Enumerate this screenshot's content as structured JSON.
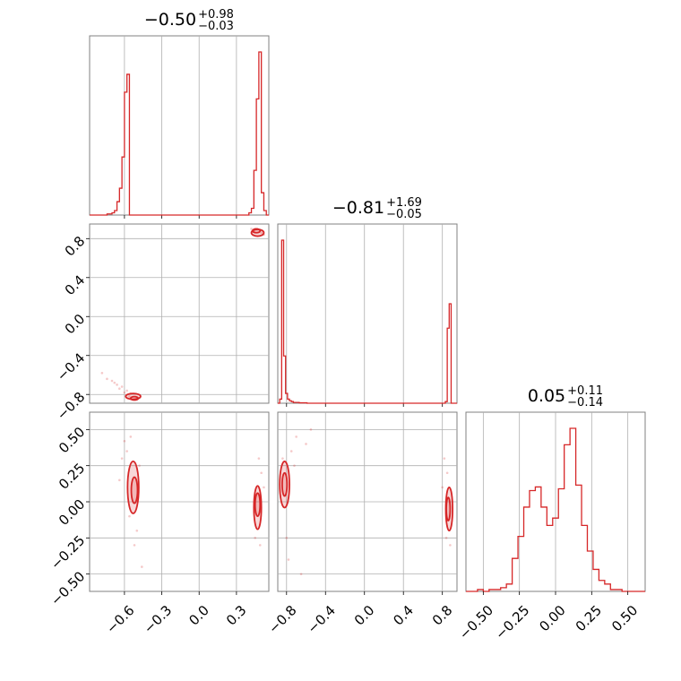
{
  "chart_data": {
    "type": "corner",
    "colors": {
      "line": "#d62728",
      "grid": "#b0b0b0",
      "frame": "#808080"
    },
    "parameters": [
      {
        "title_value": "−0.50",
        "title_upper": "+0.98",
        "title_lower": "−0.03",
        "range": [
          -0.88,
          0.56
        ],
        "ticks": [
          -0.6,
          -0.3,
          0.0,
          0.3
        ],
        "tick_labels": [
          "−0.6",
          "−0.3",
          "0.0",
          "0.3"
        ],
        "hist_edges": [
          -0.88,
          -0.86,
          -0.84,
          -0.82,
          -0.8,
          -0.78,
          -0.76,
          -0.74,
          -0.72,
          -0.7,
          -0.68,
          -0.66,
          -0.64,
          -0.62,
          -0.6,
          -0.58,
          -0.56,
          -0.54,
          -0.52,
          -0.5,
          -0.48,
          -0.46,
          -0.44,
          -0.42,
          -0.4,
          -0.38,
          -0.36,
          -0.34,
          -0.32,
          -0.3,
          -0.28,
          -0.26,
          -0.24,
          -0.22,
          -0.2,
          -0.18,
          -0.16,
          -0.14,
          -0.12,
          -0.1,
          -0.08,
          -0.06,
          -0.04,
          -0.02,
          0.0,
          0.02,
          0.04,
          0.06,
          0.08,
          0.1,
          0.12,
          0.14,
          0.16,
          0.18,
          0.2,
          0.22,
          0.24,
          0.26,
          0.28,
          0.3,
          0.32,
          0.34,
          0.36,
          0.38,
          0.4,
          0.42,
          0.44,
          0.46,
          0.48,
          0.5,
          0.52,
          0.54,
          0.56
        ],
        "hist_counts": [
          0,
          0,
          0,
          0,
          0,
          0,
          0,
          0.5,
          0.5,
          1,
          2,
          6,
          12,
          26,
          55,
          63,
          0,
          0,
          0,
          0,
          0,
          0,
          0,
          0,
          0,
          0,
          0,
          0,
          0,
          0,
          0,
          0,
          0,
          0,
          0,
          0,
          0,
          0,
          0,
          0,
          0,
          0,
          0,
          0,
          0,
          0,
          0,
          0,
          0,
          0,
          0,
          0,
          0,
          0,
          0,
          0,
          0,
          0,
          0,
          0,
          0,
          0,
          0,
          0,
          1,
          3,
          20,
          52,
          73,
          10,
          2,
          0
        ],
        "hist_note": "bins spaced 0.02 in data units, counts read as relative heights"
      },
      {
        "title_value": "−0.81",
        "title_upper": "+1.69",
        "title_lower": "−0.05",
        "range": [
          -0.89,
          0.95
        ],
        "ticks": [
          -0.8,
          -0.4,
          0.0,
          0.4,
          0.8
        ],
        "tick_labels": [
          "−0.8",
          "−0.4",
          "0.0",
          "0.4",
          "0.8"
        ],
        "hist_edges": [
          -0.89,
          -0.87,
          -0.85,
          -0.83,
          -0.81,
          -0.79,
          -0.77,
          -0.75,
          -0.73,
          -0.71,
          -0.69,
          -0.67,
          -0.65,
          -0.63,
          -0.61,
          -0.59,
          -0.57,
          -0.55,
          -0.53,
          -0.51,
          -0.49,
          -0.47,
          -0.45,
          -0.43,
          -0.41,
          -0.39,
          -0.37,
          -0.35,
          -0.33,
          -0.31,
          -0.29,
          -0.27,
          -0.25,
          -0.23,
          -0.21,
          -0.19,
          -0.17,
          -0.15,
          -0.13,
          -0.11,
          -0.09,
          -0.07,
          -0.05,
          -0.03,
          -0.01,
          0.01,
          0.03,
          0.05,
          0.07,
          0.09,
          0.11,
          0.13,
          0.15,
          0.17,
          0.19,
          0.21,
          0.23,
          0.25,
          0.27,
          0.29,
          0.31,
          0.33,
          0.35,
          0.37,
          0.39,
          0.41,
          0.43,
          0.45,
          0.47,
          0.49,
          0.51,
          0.53,
          0.55,
          0.57,
          0.59,
          0.61,
          0.63,
          0.65,
          0.67,
          0.69,
          0.71,
          0.73,
          0.75,
          0.77,
          0.79,
          0.81,
          0.83,
          0.85,
          0.87,
          0.89,
          0.91,
          0.93,
          0.95
        ],
        "hist_counts": [
          0,
          5,
          200,
          58,
          12,
          5,
          3,
          2,
          1,
          1,
          1,
          0.5,
          0.5,
          0.5,
          0.5,
          0,
          0,
          0,
          0,
          0,
          0,
          0,
          0,
          0,
          0,
          0,
          0,
          0,
          0,
          0,
          0,
          0,
          0,
          0,
          0,
          0,
          0,
          0,
          0,
          0,
          0,
          0,
          0,
          0,
          0,
          0,
          0,
          0,
          0,
          0,
          0,
          0,
          0,
          0,
          0,
          0,
          0,
          0,
          0,
          0,
          0,
          0,
          0,
          0,
          0,
          0,
          0,
          0,
          0,
          0,
          0,
          0,
          0,
          0,
          0,
          0,
          0,
          0,
          0,
          0,
          0,
          0,
          0,
          0,
          0,
          0,
          2,
          92,
          122,
          0,
          0
        ],
        "hist_note": "bins spaced 0.02 in data units, counts read as relative heights"
      },
      {
        "title_value": "0.05",
        "title_upper": "+0.11",
        "title_lower": "−0.14",
        "range": [
          -0.62,
          0.62
        ],
        "ticks": [
          -0.5,
          -0.25,
          0.0,
          0.25,
          0.5
        ],
        "tick_labels": [
          "−0.50",
          "−0.25",
          "0.00",
          "0.25",
          "0.50"
        ],
        "hist_edges": [
          -0.62,
          -0.58,
          -0.54,
          -0.5,
          -0.46,
          -0.42,
          -0.38,
          -0.34,
          -0.3,
          -0.26,
          -0.22,
          -0.18,
          -0.14,
          -0.1,
          -0.06,
          -0.02,
          0.02,
          0.06,
          0.1,
          0.14,
          0.18,
          0.22,
          0.26,
          0.3,
          0.34,
          0.38,
          0.42,
          0.46,
          0.5,
          0.54,
          0.58,
          0.62
        ],
        "hist_counts": [
          0,
          0,
          1,
          0,
          1,
          1,
          2,
          4,
          18,
          30,
          46,
          55,
          57,
          46,
          36,
          40,
          56,
          80,
          89,
          58,
          36,
          22,
          12,
          6,
          4,
          1,
          1,
          0,
          0,
          0,
          0
        ],
        "hist_note": "bins spaced 0.04 in data units, counts read as relative heights"
      }
    ],
    "pairs": [
      {
        "x_param": 0,
        "y_param": 1,
        "contours": [
          {
            "cx": -0.52,
            "cy": -0.84,
            "rx": 0.03,
            "ry": 0.018
          },
          {
            "cx": -0.53,
            "cy": -0.82,
            "rx": 0.06,
            "ry": 0.03
          },
          {
            "cx": 0.46,
            "cy": 0.88,
            "rx": 0.03,
            "ry": 0.02
          },
          {
            "cx": 0.47,
            "cy": 0.86,
            "rx": 0.05,
            "ry": 0.035
          }
        ],
        "samples": [
          [
            -0.78,
            -0.58
          ],
          [
            -0.74,
            -0.64
          ],
          [
            -0.7,
            -0.66
          ],
          [
            -0.66,
            -0.7
          ],
          [
            -0.62,
            -0.72
          ],
          [
            -0.58,
            -0.76
          ],
          [
            -0.55,
            -0.79
          ],
          [
            -0.6,
            -0.78
          ],
          [
            -0.64,
            -0.74
          ],
          [
            -0.5,
            -0.84
          ],
          [
            -0.56,
            -0.82
          ],
          [
            -0.68,
            -0.68
          ],
          [
            0.42,
            0.9
          ],
          [
            0.5,
            0.86
          ],
          [
            0.52,
            0.84
          ],
          [
            0.44,
            0.87
          ]
        ]
      },
      {
        "x_param": 0,
        "y_param": 2,
        "contours": [
          {
            "cx": -0.52,
            "cy": 0.08,
            "rx": 0.025,
            "ry": 0.09
          },
          {
            "cx": -0.53,
            "cy": 0.1,
            "rx": 0.045,
            "ry": 0.18
          },
          {
            "cx": 0.47,
            "cy": -0.02,
            "rx": 0.02,
            "ry": 0.08
          },
          {
            "cx": 0.47,
            "cy": -0.04,
            "rx": 0.03,
            "ry": 0.15
          }
        ],
        "samples": [
          [
            -0.6,
            0.42
          ],
          [
            -0.58,
            0.35
          ],
          [
            -0.62,
            0.3
          ],
          [
            -0.55,
            0.45
          ],
          [
            -0.5,
            -0.2
          ],
          [
            -0.52,
            -0.3
          ],
          [
            -0.56,
            -0.1
          ],
          [
            -0.48,
            0.25
          ],
          [
            -0.64,
            0.15
          ],
          [
            -0.46,
            -0.45
          ],
          [
            0.5,
            0.2
          ],
          [
            0.48,
            0.3
          ],
          [
            0.45,
            -0.25
          ],
          [
            0.49,
            -0.3
          ],
          [
            0.52,
            0.1
          ]
        ]
      },
      {
        "x_param": 1,
        "y_param": 2,
        "contours": [
          {
            "cx": -0.82,
            "cy": 0.12,
            "rx": 0.025,
            "ry": 0.08
          },
          {
            "cx": -0.82,
            "cy": 0.12,
            "rx": 0.05,
            "ry": 0.16
          },
          {
            "cx": 0.86,
            "cy": -0.05,
            "rx": 0.02,
            "ry": 0.08
          },
          {
            "cx": 0.87,
            "cy": -0.05,
            "rx": 0.035,
            "ry": 0.15
          }
        ],
        "samples": [
          [
            -0.7,
            0.45
          ],
          [
            -0.6,
            0.4
          ],
          [
            -0.75,
            0.35
          ],
          [
            -0.8,
            -0.25
          ],
          [
            -0.78,
            -0.4
          ],
          [
            -0.65,
            -0.5
          ],
          [
            -0.55,
            0.5
          ],
          [
            -0.84,
            0.3
          ],
          [
            -0.72,
            0.25
          ],
          [
            0.82,
            0.3
          ],
          [
            0.85,
            0.2
          ],
          [
            0.84,
            -0.25
          ],
          [
            0.88,
            -0.3
          ],
          [
            0.8,
            0.1
          ]
        ]
      }
    ]
  }
}
